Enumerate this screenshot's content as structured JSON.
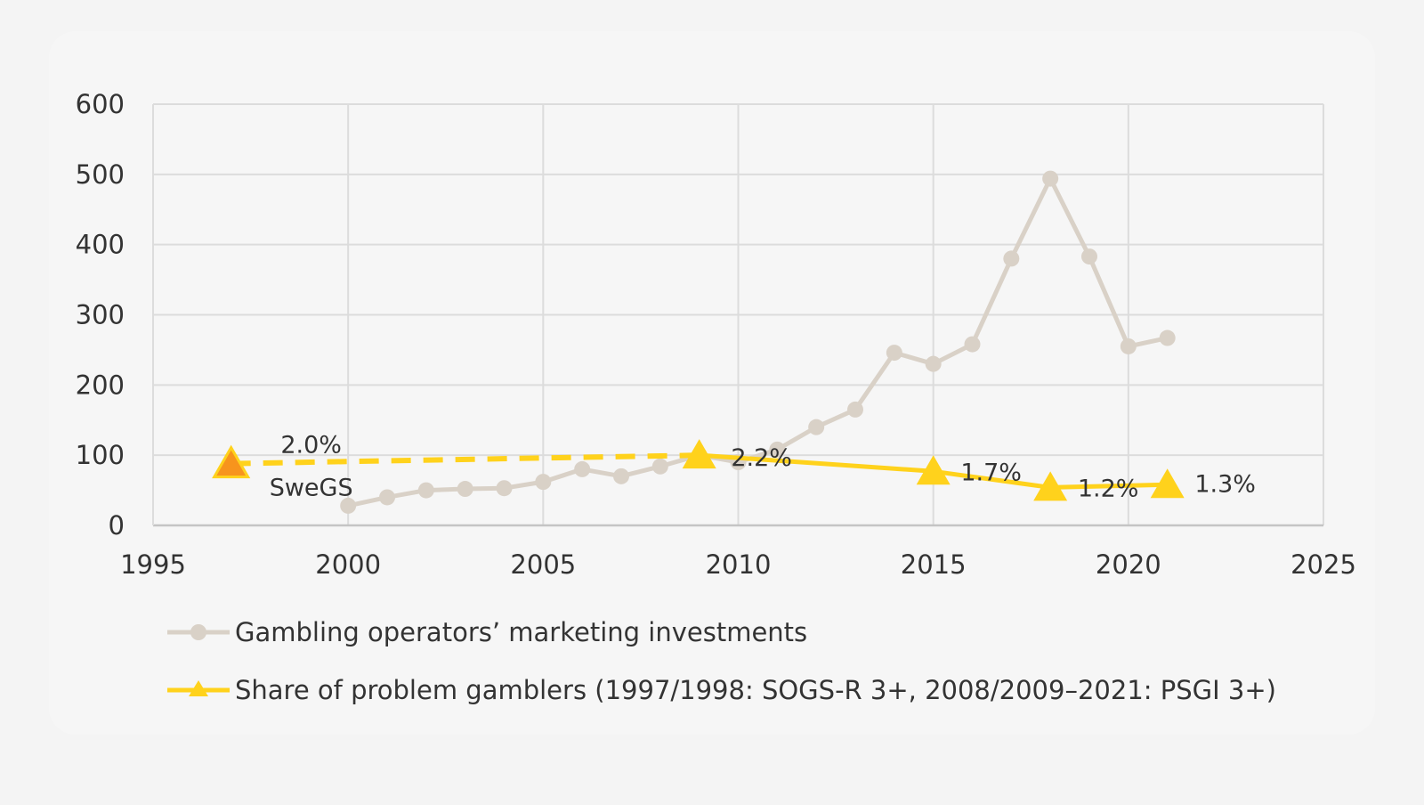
{
  "chart_data": {
    "type": "line",
    "title": "",
    "xlabel": "",
    "ylabel": "",
    "xlim": [
      1995,
      2025
    ],
    "ylim": [
      0,
      600
    ],
    "x_ticks": [
      "1995",
      "2000",
      "2005",
      "2010",
      "2015",
      "2020",
      "2025"
    ],
    "y_ticks": [
      "0",
      "100",
      "200",
      "300",
      "400",
      "500",
      "600"
    ],
    "grid": true,
    "legend_position": "bottom",
    "series": [
      {
        "name": "Gambling operators’ marketing investments",
        "color": "#d9d1c7",
        "marker": "circle",
        "points": [
          {
            "x": 2000,
            "y": 28
          },
          {
            "x": 2001,
            "y": 40
          },
          {
            "x": 2002,
            "y": 50
          },
          {
            "x": 2003,
            "y": 52
          },
          {
            "x": 2004,
            "y": 53
          },
          {
            "x": 2005,
            "y": 62
          },
          {
            "x": 2006,
            "y": 80
          },
          {
            "x": 2007,
            "y": 70
          },
          {
            "x": 2008,
            "y": 84
          },
          {
            "x": 2009,
            "y": 100
          },
          {
            "x": 2010,
            "y": 90
          },
          {
            "x": 2011,
            "y": 108
          },
          {
            "x": 2012,
            "y": 140
          },
          {
            "x": 2013,
            "y": 165
          },
          {
            "x": 2014,
            "y": 246
          },
          {
            "x": 2015,
            "y": 230
          },
          {
            "x": 2016,
            "y": 258
          },
          {
            "x": 2017,
            "y": 380
          },
          {
            "x": 2018,
            "y": 494
          },
          {
            "x": 2019,
            "y": 383
          },
          {
            "x": 2020,
            "y": 255
          },
          {
            "x": 2021,
            "y": 267
          }
        ]
      },
      {
        "name": "Share of problem gamblers (1997/1998: SOGS-R 3+, 2008/2009–2021: PSGI 3+)",
        "color": "#ffd21c",
        "marker": "triangle",
        "points": [
          {
            "x": 1997,
            "y": 88,
            "label": "2.0%",
            "sublabel": "SweGS",
            "marker_color": "#f7941d"
          },
          {
            "x": 2009,
            "y": 100,
            "label": "2.2%"
          },
          {
            "x": 2015,
            "y": 77,
            "label": "1.7%"
          },
          {
            "x": 2018,
            "y": 54,
            "label": "1.2%"
          },
          {
            "x": 2021,
            "y": 58,
            "label": "1.3%"
          }
        ],
        "dashed_until_x": 2009
      }
    ]
  }
}
